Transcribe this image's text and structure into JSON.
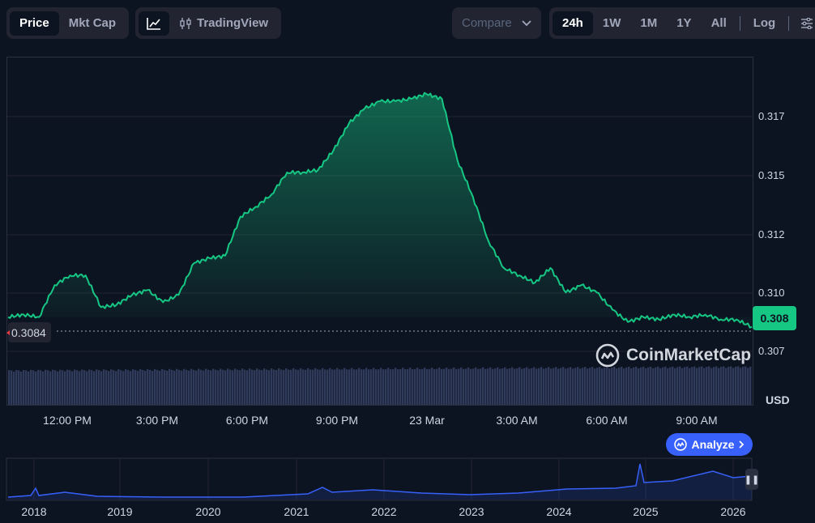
{
  "toolbar": {
    "mode_tabs": [
      "Price",
      "Mkt Cap"
    ],
    "active_mode": "Price",
    "tradingview_label": "TradingView",
    "compare_label": "Compare",
    "ranges": [
      "24h",
      "1W",
      "1M",
      "1Y",
      "All"
    ],
    "active_range": "24h",
    "log_label": "Log"
  },
  "chart": {
    "current_price": "0.308",
    "open_price": "0.3084",
    "currency_label": "USD",
    "watermark": "CoinMarketCap",
    "analyze_label": "Analyze",
    "line_color": "#16c784",
    "volume_color": "#303a5a"
  },
  "chart_data": {
    "type": "area",
    "y_ticks": [
      "0.317",
      "0.315",
      "0.312",
      "0.310",
      "0.307"
    ],
    "x_ticks": [
      "12:00 PM",
      "3:00 PM",
      "6:00 PM",
      "9:00 PM",
      "23 Mar",
      "3:00 AM",
      "6:00 AM",
      "9:00 AM"
    ],
    "ylim": [
      0.307,
      0.3177
    ],
    "x_hours": [
      0,
      0.5,
      1,
      1.5,
      2,
      2.5,
      3,
      3.5,
      4,
      4.5,
      5,
      5.5,
      6,
      6.5,
      7,
      7.5,
      8,
      8.5,
      9,
      9.5,
      10,
      10.5,
      11,
      11.5,
      12,
      12.5,
      13,
      13.5,
      14,
      14.5,
      15,
      15.5,
      16,
      16.5,
      17,
      17.5,
      18,
      18.5,
      19,
      19.5,
      20,
      20.5,
      21,
      21.5,
      22,
      22.5,
      23,
      23.5,
      24
    ],
    "values": [
      0.3084,
      0.3085,
      0.3084,
      0.3097,
      0.3101,
      0.3101,
      0.3088,
      0.3089,
      0.3093,
      0.3095,
      0.309,
      0.3093,
      0.3106,
      0.3108,
      0.3109,
      0.3125,
      0.3129,
      0.3134,
      0.3143,
      0.3143,
      0.3144,
      0.3152,
      0.3163,
      0.3169,
      0.3172,
      0.3172,
      0.3173,
      0.3175,
      0.3173,
      0.3148,
      0.3133,
      0.3115,
      0.3104,
      0.3101,
      0.3098,
      0.3104,
      0.3094,
      0.3097,
      0.3094,
      0.3087,
      0.3082,
      0.3084,
      0.3083,
      0.3085,
      0.3084,
      0.3085,
      0.3083,
      0.3083,
      0.308
    ],
    "volume_level": 0.78,
    "history": {
      "years": [
        "2018",
        "2019",
        "2020",
        "2021",
        "2022",
        "2023",
        "2024",
        "2025",
        "2026"
      ]
    }
  }
}
